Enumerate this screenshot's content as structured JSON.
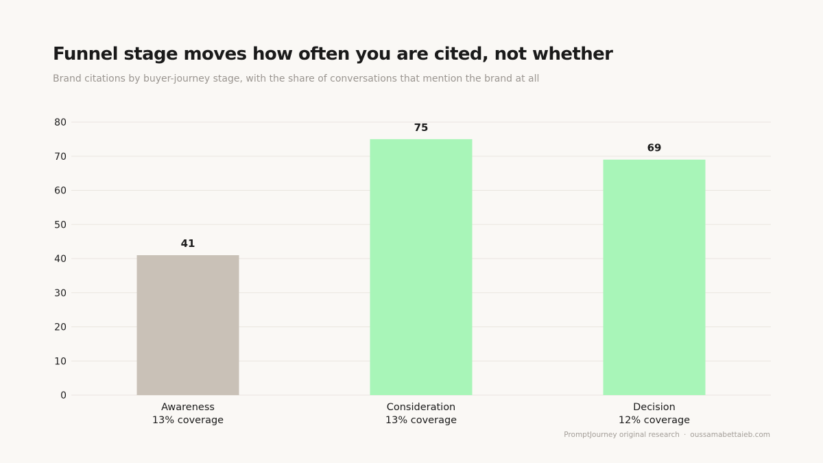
{
  "header": {
    "title": "Funnel stage moves how often you are cited, not whether",
    "subtitle": "Brand citations by buyer-journey stage, with the share of conversations that mention the brand at all"
  },
  "footer": {
    "source": "PromptJourney original research",
    "separator": "·",
    "site": "oussamabettaieb.com"
  },
  "colors": {
    "background": "#faf8f5",
    "grid": "#e9e5df",
    "muted_bar": "#c9c1b7",
    "accent_bar": "#a8f5b8",
    "text": "#1a1a1a"
  },
  "chart_data": {
    "type": "bar",
    "categories": [
      "Awareness",
      "Consideration",
      "Decision"
    ],
    "coverage_labels": [
      "13% coverage",
      "13% coverage",
      "12% coverage"
    ],
    "values": [
      41,
      75,
      69
    ],
    "value_labels": [
      "41",
      "75",
      "69"
    ],
    "bar_colors": [
      "#c9c1b7",
      "#a8f5b8",
      "#a8f5b8"
    ],
    "title": "Funnel stage moves how often you are cited, not whether",
    "subtitle": "Brand citations by buyer-journey stage, with the share of conversations that mention the brand at all",
    "xlabel": "",
    "ylabel": "",
    "ylim": [
      0,
      80
    ],
    "yticks": [
      0,
      10,
      20,
      30,
      40,
      50,
      60,
      70,
      80
    ],
    "ytick_labels": [
      "0",
      "10",
      "20",
      "30",
      "40",
      "50",
      "60",
      "70",
      "80"
    ],
    "grid": true,
    "legend": "none"
  }
}
